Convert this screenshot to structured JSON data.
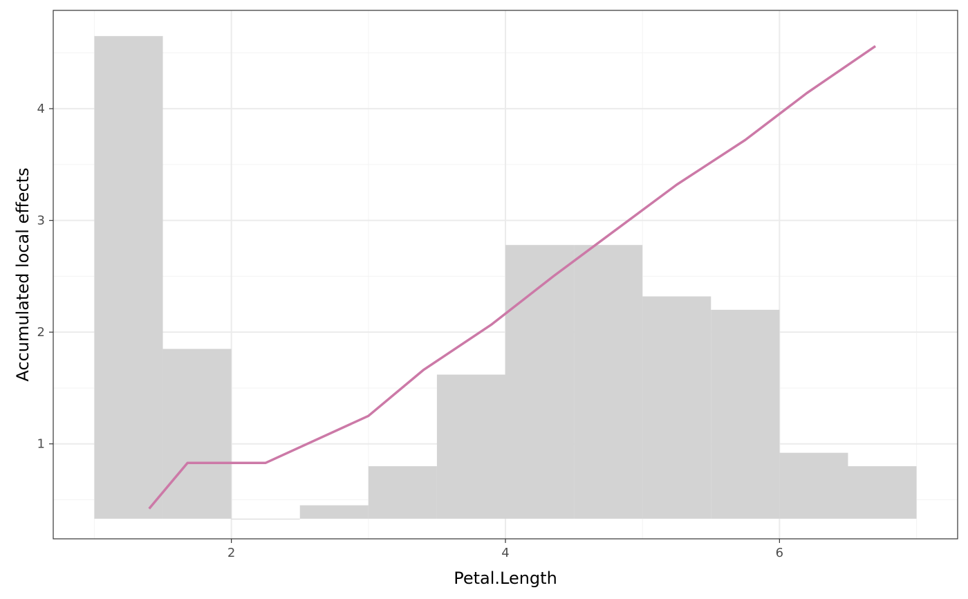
{
  "chart_data": {
    "type": "bar+line",
    "title": "",
    "xlabel": "Petal.Length",
    "ylabel": "Accumulated local effects",
    "xlim": [
      0.7,
      7.3
    ],
    "ylim": [
      0.15,
      4.88
    ],
    "x_ticks": [
      2,
      4,
      6
    ],
    "x_tick_labels": [
      "2",
      "4",
      "6"
    ],
    "y_ticks": [
      1,
      2,
      3,
      4
    ],
    "y_tick_labels": [
      "1",
      "2",
      "3",
      "4"
    ],
    "grid": true,
    "histogram": {
      "baseline": 0.33,
      "bins": [
        {
          "x0": 1.0,
          "x1": 1.5,
          "top": 4.65
        },
        {
          "x0": 1.5,
          "x1": 2.0,
          "top": 1.85
        },
        {
          "x0": 2.0,
          "x1": 2.5,
          "top": 0.33
        },
        {
          "x0": 2.5,
          "x1": 3.0,
          "top": 0.45
        },
        {
          "x0": 3.0,
          "x1": 3.5,
          "top": 0.8
        },
        {
          "x0": 3.5,
          "x1": 4.0,
          "top": 1.62
        },
        {
          "x0": 4.0,
          "x1": 4.5,
          "top": 2.78
        },
        {
          "x0": 4.5,
          "x1": 5.0,
          "top": 2.78
        },
        {
          "x0": 5.0,
          "x1": 5.5,
          "top": 2.32
        },
        {
          "x0": 5.5,
          "x1": 6.0,
          "top": 2.2
        },
        {
          "x0": 6.0,
          "x1": 6.5,
          "top": 0.92
        },
        {
          "x0": 6.5,
          "x1": 7.0,
          "top": 0.8
        }
      ]
    },
    "series": [
      {
        "x": [
          1.4,
          1.68,
          2.25,
          3.0,
          3.4,
          3.9,
          4.35,
          4.8,
          5.25,
          5.75,
          6.2,
          6.7
        ],
        "y": [
          0.42,
          0.83,
          0.83,
          1.25,
          1.66,
          2.07,
          2.5,
          2.91,
          3.32,
          3.72,
          4.14,
          4.56
        ]
      }
    ],
    "colors": {
      "bars": "#d3d3d3",
      "line": "#cc79a7",
      "grid_major": "#ebebeb",
      "grid_minor": "#f3f3f3",
      "panel_border": "#333333",
      "tick_label": "#4d4d4d",
      "tick_mark": "#333333"
    }
  }
}
